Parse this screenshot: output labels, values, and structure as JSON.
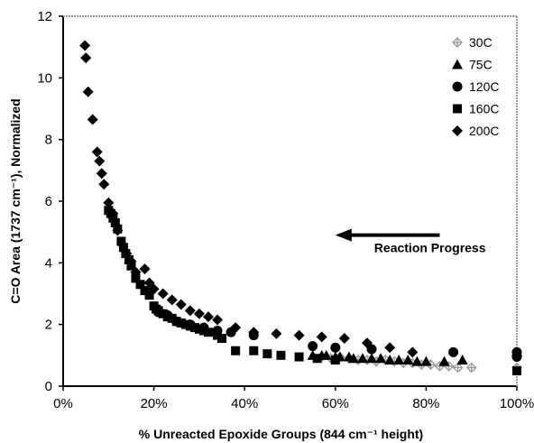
{
  "chart_data": {
    "type": "scatter",
    "xlabel": "% Unreacted Epoxide Groups (844 cm⁻¹ height)",
    "ylabel": "C=O Area (1737 cm⁻¹), Normalized",
    "xlim": [
      0,
      100
    ],
    "ylim": [
      0,
      12
    ],
    "x_ticks": [
      "0%",
      "20%",
      "40%",
      "60%",
      "80%",
      "100%"
    ],
    "y_ticks": [
      "0",
      "2",
      "4",
      "6",
      "8",
      "10",
      "12"
    ],
    "grid": false,
    "legend_position": "top-right",
    "annotations": [
      {
        "text": "Reaction Progress",
        "arrow": "left",
        "x_from": 83,
        "x_to": 60,
        "y": 4.9
      }
    ],
    "series": [
      {
        "name": "30C",
        "marker": "plus-diamond",
        "color": "#9a9a9a",
        "points": [
          [
            57,
            0.95
          ],
          [
            59,
            0.9
          ],
          [
            61,
            0.95
          ],
          [
            63,
            0.9
          ],
          [
            65,
            0.85
          ],
          [
            67,
            0.85
          ],
          [
            69,
            0.8
          ],
          [
            71,
            0.85
          ],
          [
            73,
            0.8
          ],
          [
            75,
            0.75
          ],
          [
            77,
            0.75
          ],
          [
            79,
            0.7
          ],
          [
            81,
            0.7
          ],
          [
            83,
            0.65
          ],
          [
            85,
            0.65
          ],
          [
            87,
            0.6
          ],
          [
            90,
            0.6
          ],
          [
            100,
            0.6
          ]
        ]
      },
      {
        "name": "75C",
        "marker": "triangle",
        "color": "#000000",
        "points": [
          [
            55,
            1.0
          ],
          [
            57,
            1.0
          ],
          [
            58,
            1.0
          ],
          [
            60,
            0.95
          ],
          [
            61,
            0.95
          ],
          [
            63,
            0.95
          ],
          [
            64,
            0.9
          ],
          [
            66,
            0.9
          ],
          [
            68,
            0.9
          ],
          [
            70,
            0.9
          ],
          [
            72,
            0.85
          ],
          [
            74,
            0.85
          ],
          [
            76,
            0.85
          ],
          [
            78,
            0.8
          ],
          [
            80,
            0.8
          ],
          [
            84,
            0.8
          ],
          [
            88,
            0.85
          ]
        ]
      },
      {
        "name": "120C",
        "marker": "circle",
        "color": "#000000",
        "points": [
          [
            21,
            2.4
          ],
          [
            23,
            2.3
          ],
          [
            25,
            2.1
          ],
          [
            28,
            2.0
          ],
          [
            31,
            1.9
          ],
          [
            34,
            1.8
          ],
          [
            37,
            1.75
          ],
          [
            42,
            1.65
          ],
          [
            55,
            1.3
          ],
          [
            60,
            1.25
          ],
          [
            68,
            1.2
          ],
          [
            86,
            1.1
          ],
          [
            100,
            1.1
          ],
          [
            100,
            0.95
          ]
        ]
      },
      {
        "name": "160C",
        "marker": "square",
        "color": "#000000",
        "points": [
          [
            10,
            5.7
          ],
          [
            10.5,
            5.6
          ],
          [
            11,
            5.45
          ],
          [
            11.5,
            5.3
          ],
          [
            12,
            5.1
          ],
          [
            12.8,
            4.7
          ],
          [
            13.3,
            4.5
          ],
          [
            13.8,
            4.3
          ],
          [
            14.5,
            4.1
          ],
          [
            15,
            3.9
          ],
          [
            16,
            3.5
          ],
          [
            17,
            3.3
          ],
          [
            18,
            3.1
          ],
          [
            19,
            2.95
          ],
          [
            20,
            2.6
          ],
          [
            20.5,
            2.5
          ],
          [
            21,
            2.45
          ],
          [
            22,
            2.35
          ],
          [
            23,
            2.25
          ],
          [
            24,
            2.2
          ],
          [
            25,
            2.1
          ],
          [
            26,
            2.05
          ],
          [
            27,
            2.0
          ],
          [
            28,
            1.95
          ],
          [
            29,
            1.9
          ],
          [
            30,
            1.85
          ],
          [
            31,
            1.8
          ],
          [
            32,
            1.75
          ],
          [
            34,
            1.65
          ],
          [
            35,
            1.55
          ],
          [
            38,
            1.15
          ],
          [
            42,
            1.15
          ],
          [
            45,
            1.05
          ],
          [
            48,
            1.0
          ],
          [
            52,
            0.95
          ],
          [
            56,
            0.9
          ],
          [
            60,
            0.85
          ],
          [
            100,
            0.5
          ]
        ]
      },
      {
        "name": "200C",
        "marker": "diamond",
        "color": "#000000",
        "points": [
          [
            4.8,
            11.05
          ],
          [
            5,
            10.65
          ],
          [
            5.5,
            9.55
          ],
          [
            6.5,
            8.65
          ],
          [
            7.5,
            7.6
          ],
          [
            8,
            7.3
          ],
          [
            8.5,
            6.9
          ],
          [
            9,
            6.55
          ],
          [
            10,
            5.95
          ],
          [
            11,
            5.6
          ],
          [
            12,
            5.05
          ],
          [
            13,
            4.6
          ],
          [
            14,
            4.3
          ],
          [
            15,
            4.05
          ],
          [
            16,
            3.7
          ],
          [
            18,
            3.8
          ],
          [
            19,
            3.35
          ],
          [
            20,
            3.15
          ],
          [
            22,
            3.0
          ],
          [
            24,
            2.8
          ],
          [
            26,
            2.65
          ],
          [
            28,
            2.45
          ],
          [
            30,
            2.35
          ],
          [
            32,
            2.25
          ],
          [
            34,
            2.15
          ],
          [
            38,
            1.9
          ],
          [
            42,
            1.75
          ],
          [
            47,
            1.7
          ],
          [
            52,
            1.65
          ],
          [
            57,
            1.6
          ],
          [
            62,
            1.55
          ],
          [
            67,
            1.4
          ],
          [
            72,
            1.25
          ],
          [
            77,
            1.1
          ],
          [
            100,
            1.0
          ]
        ]
      }
    ]
  }
}
